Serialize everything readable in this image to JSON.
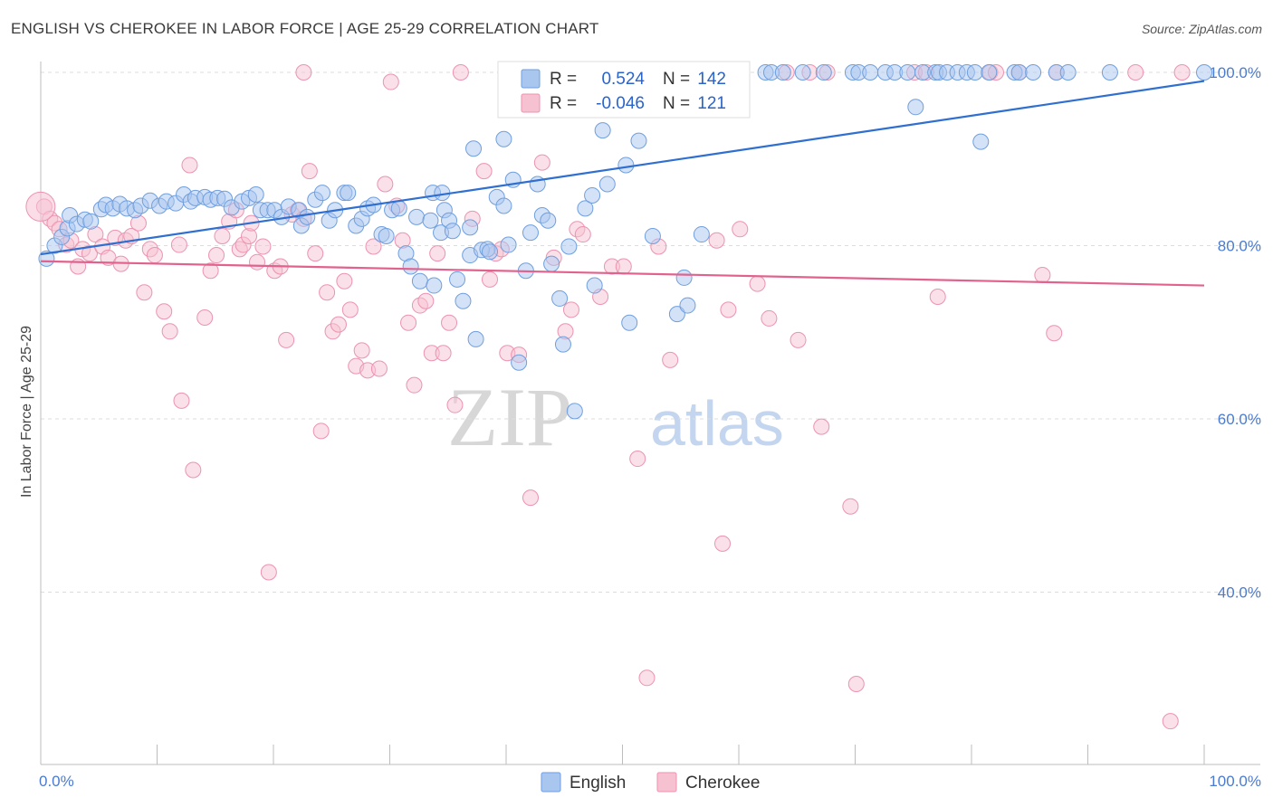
{
  "header": {
    "title": "ENGLISH VS CHEROKEE IN LABOR FORCE | AGE 25-29 CORRELATION CHART",
    "source": "Source: ZipAtlas.com"
  },
  "watermark": {
    "zip": "ZIP",
    "atlas": "atlas"
  },
  "colors": {
    "english_fill": "#a9c6ef",
    "english_stroke": "#6f9fdf",
    "english_line": "#2f6fd0",
    "cherokee_fill": "#f6c1d1",
    "cherokee_stroke": "#ec93b0",
    "cherokee_line": "#e2628e",
    "accent_text": "#2a63c9"
  },
  "legend": {
    "r_label": "R =",
    "n_label": "N =",
    "rows": [
      {
        "series": "English",
        "r": "0.524",
        "n": "142"
      },
      {
        "series": "Cherokee",
        "r": "-0.046",
        "n": "121"
      }
    ]
  },
  "chart_data": {
    "type": "scatter",
    "title": "ENGLISH VS CHEROKEE IN LABOR FORCE | AGE 25-29 CORRELATION CHART",
    "xlabel": "",
    "ylabel": "In Labor Force | Age 25-29",
    "xlim": [
      0,
      100
    ],
    "ylim": [
      20,
      102
    ],
    "x_tick_labels": [
      "0.0%",
      "100.0%"
    ],
    "y_ticks": [
      40,
      60,
      80,
      100
    ],
    "y_tick_labels": [
      "40.0%",
      "60.0%",
      "80.0%",
      "100.0%"
    ],
    "grid": true,
    "legend_position": "top-center",
    "series": [
      {
        "name": "English",
        "r": 0.524,
        "n": 142,
        "trend": {
          "x": [
            0,
            100
          ],
          "y": [
            79.0,
            99.0
          ]
        },
        "points": [
          [
            0.5,
            78.5
          ],
          [
            1.2,
            80
          ],
          [
            1.8,
            81
          ],
          [
            2.3,
            82
          ],
          [
            2.5,
            83.5
          ],
          [
            3.1,
            82.5
          ],
          [
            3.8,
            83
          ],
          [
            4.3,
            82.8
          ],
          [
            5.2,
            84.2
          ],
          [
            5.6,
            84.7
          ],
          [
            6.2,
            84.3
          ],
          [
            6.8,
            84.8
          ],
          [
            7.4,
            84.3
          ],
          [
            8.1,
            84.1
          ],
          [
            8.6,
            84.6
          ],
          [
            9.4,
            85.2
          ],
          [
            10.2,
            84.6
          ],
          [
            10.8,
            85.1
          ],
          [
            11.6,
            84.9
          ],
          [
            12.3,
            85.9
          ],
          [
            12.9,
            85.1
          ],
          [
            13.3,
            85.5
          ],
          [
            14.1,
            85.6
          ],
          [
            14.6,
            85.3
          ],
          [
            15.2,
            85.5
          ],
          [
            15.8,
            85.4
          ],
          [
            16.4,
            84.4
          ],
          [
            17.3,
            85.1
          ],
          [
            17.9,
            85.5
          ],
          [
            18.5,
            85.9
          ],
          [
            18.9,
            84.1
          ],
          [
            19.5,
            84.1
          ],
          [
            20.1,
            84.1
          ],
          [
            20.7,
            83.3
          ],
          [
            21.3,
            84.5
          ],
          [
            22.2,
            84.1
          ],
          [
            22.4,
            82.3
          ],
          [
            22.9,
            83.3
          ],
          [
            23.6,
            85.3
          ],
          [
            24.2,
            86.1
          ],
          [
            24.8,
            82.9
          ],
          [
            25.3,
            84.1
          ],
          [
            26.1,
            86.1
          ],
          [
            26.4,
            86.1
          ],
          [
            27.1,
            82.3
          ],
          [
            27.6,
            83.1
          ],
          [
            28.1,
            84.3
          ],
          [
            28.6,
            84.7
          ],
          [
            29.3,
            81.3
          ],
          [
            29.7,
            81.1
          ],
          [
            30.2,
            84.1
          ],
          [
            30.8,
            84.3
          ],
          [
            31.4,
            79.1
          ],
          [
            31.8,
            77.6
          ],
          [
            32.3,
            83.3
          ],
          [
            32.6,
            75.9
          ],
          [
            33.5,
            82.9
          ],
          [
            33.7,
            86.1
          ],
          [
            33.8,
            75.4
          ],
          [
            34.4,
            81.5
          ],
          [
            34.7,
            84.1
          ],
          [
            35.1,
            82.9
          ],
          [
            35.4,
            81.7
          ],
          [
            35.8,
            76.1
          ],
          [
            36.3,
            73.6
          ],
          [
            36.9,
            78.9
          ],
          [
            37.4,
            69.2
          ],
          [
            37.9,
            79.5
          ],
          [
            38.4,
            79.6
          ],
          [
            38.6,
            79.3
          ],
          [
            39.2,
            85.6
          ],
          [
            39.8,
            92.3
          ],
          [
            40.2,
            80.1
          ],
          [
            40.6,
            87.6
          ],
          [
            41.1,
            66.5
          ],
          [
            41.7,
            77.1
          ],
          [
            42.1,
            81.5
          ],
          [
            42.7,
            87.1
          ],
          [
            43.1,
            83.5
          ],
          [
            43.6,
            82.9
          ],
          [
            43.9,
            77.9
          ],
          [
            44.6,
            73.9
          ],
          [
            44.9,
            68.6
          ],
          [
            45.4,
            79.9
          ],
          [
            45.9,
            60.9
          ],
          [
            46.8,
            84.3
          ],
          [
            47.4,
            85.8
          ],
          [
            47.6,
            75.4
          ],
          [
            48.3,
            93.3
          ],
          [
            48.7,
            87.1
          ],
          [
            50.3,
            89.3
          ],
          [
            50.6,
            71.1
          ],
          [
            51.4,
            92.1
          ],
          [
            52.6,
            81.1
          ],
          [
            54.7,
            72.1
          ],
          [
            55.3,
            76.3
          ],
          [
            55.6,
            73.1
          ],
          [
            56.8,
            81.3
          ],
          [
            59.6,
            100
          ],
          [
            60.2,
            100
          ],
          [
            62.3,
            100
          ],
          [
            62.8,
            100
          ],
          [
            63.8,
            100
          ],
          [
            65.5,
            100
          ],
          [
            67.3,
            100
          ],
          [
            69.8,
            100
          ],
          [
            70.3,
            100
          ],
          [
            71.3,
            100
          ],
          [
            72.6,
            100
          ],
          [
            73.4,
            100
          ],
          [
            74.5,
            100
          ],
          [
            75.2,
            96
          ],
          [
            75.8,
            100
          ],
          [
            76.9,
            100
          ],
          [
            77.2,
            100
          ],
          [
            77.9,
            100
          ],
          [
            78.8,
            100
          ],
          [
            79.6,
            100
          ],
          [
            80.3,
            100
          ],
          [
            80.8,
            92
          ],
          [
            81.5,
            100
          ],
          [
            83.7,
            100
          ],
          [
            84.1,
            100
          ],
          [
            85.3,
            100
          ],
          [
            87.3,
            100
          ],
          [
            88.3,
            100
          ],
          [
            91.9,
            100
          ],
          [
            100,
            100
          ],
          [
            34.5,
            86.1
          ],
          [
            37.2,
            91.2
          ],
          [
            36.9,
            82.1
          ],
          [
            39.8,
            84.6
          ]
        ]
      },
      {
        "name": "Cherokee",
        "r": -0.046,
        "n": 121,
        "trend": {
          "x": [
            0,
            100
          ],
          "y": [
            78.2,
            75.4
          ]
        },
        "points": [
          [
            0.3,
            84.5
          ],
          [
            0.8,
            83.1
          ],
          [
            1.2,
            82.6
          ],
          [
            1.6,
            81.9
          ],
          [
            2.2,
            80.1
          ],
          [
            2.6,
            80.6
          ],
          [
            3.2,
            77.6
          ],
          [
            3.6,
            79.6
          ],
          [
            4.2,
            79.1
          ],
          [
            4.7,
            81.3
          ],
          [
            5.3,
            79.9
          ],
          [
            5.8,
            78.6
          ],
          [
            6.4,
            80.9
          ],
          [
            6.9,
            77.9
          ],
          [
            7.3,
            80.6
          ],
          [
            7.8,
            81.1
          ],
          [
            8.4,
            82.6
          ],
          [
            8.9,
            74.6
          ],
          [
            9.4,
            79.6
          ],
          [
            9.8,
            78.9
          ],
          [
            10.6,
            72.4
          ],
          [
            11.1,
            70.1
          ],
          [
            11.9,
            80.1
          ],
          [
            12.1,
            62.1
          ],
          [
            12.8,
            89.3
          ],
          [
            13.1,
            54.1
          ],
          [
            14.1,
            71.7
          ],
          [
            14.6,
            77.1
          ],
          [
            15.1,
            78.9
          ],
          [
            15.6,
            81.1
          ],
          [
            16.2,
            82.8
          ],
          [
            16.8,
            84.1
          ],
          [
            17.1,
            79.6
          ],
          [
            17.4,
            80.1
          ],
          [
            17.9,
            81.1
          ],
          [
            18.1,
            82.6
          ],
          [
            18.6,
            78.1
          ],
          [
            19.1,
            79.9
          ],
          [
            19.6,
            42.3
          ],
          [
            20.1,
            77.1
          ],
          [
            20.6,
            77.6
          ],
          [
            21.1,
            69.1
          ],
          [
            21.6,
            83.6
          ],
          [
            22.1,
            84.1
          ],
          [
            22.6,
            83.1
          ],
          [
            23.1,
            88.6
          ],
          [
            23.6,
            79.1
          ],
          [
            24.1,
            58.6
          ],
          [
            24.6,
            74.6
          ],
          [
            25.1,
            70.1
          ],
          [
            25.6,
            70.9
          ],
          [
            26.1,
            75.9
          ],
          [
            26.6,
            72.6
          ],
          [
            27.1,
            66.1
          ],
          [
            27.6,
            67.9
          ],
          [
            28.1,
            65.6
          ],
          [
            28.6,
            79.9
          ],
          [
            29.1,
            65.8
          ],
          [
            29.6,
            87.1
          ],
          [
            30.1,
            98.9
          ],
          [
            30.6,
            84.6
          ],
          [
            31.1,
            80.6
          ],
          [
            31.6,
            71.1
          ],
          [
            32.1,
            63.9
          ],
          [
            32.6,
            73.1
          ],
          [
            33.1,
            73.6
          ],
          [
            33.6,
            67.6
          ],
          [
            34.1,
            79.1
          ],
          [
            34.6,
            67.6
          ],
          [
            35.1,
            71.1
          ],
          [
            35.6,
            61.6
          ],
          [
            36.1,
            100
          ],
          [
            37.1,
            83.1
          ],
          [
            38.1,
            88.6
          ],
          [
            38.6,
            76.1
          ],
          [
            39.1,
            79.1
          ],
          [
            39.6,
            79.6
          ],
          [
            40.1,
            67.6
          ],
          [
            41.1,
            67.4
          ],
          [
            42.1,
            50.9
          ],
          [
            43.1,
            89.6
          ],
          [
            44.1,
            78.6
          ],
          [
            45.1,
            70.1
          ],
          [
            45.6,
            72.6
          ],
          [
            46.1,
            81.9
          ],
          [
            46.6,
            81.3
          ],
          [
            48.1,
            74.1
          ],
          [
            49.1,
            77.6
          ],
          [
            50.1,
            77.6
          ],
          [
            51.3,
            55.4
          ],
          [
            52.1,
            30.1
          ],
          [
            53.1,
            79.9
          ],
          [
            54.1,
            66.8
          ],
          [
            55.6,
            100
          ],
          [
            56.1,
            98.9
          ],
          [
            58.1,
            80.6
          ],
          [
            58.6,
            45.6
          ],
          [
            59.1,
            72.6
          ],
          [
            60.1,
            81.9
          ],
          [
            61.6,
            75.6
          ],
          [
            62.6,
            71.6
          ],
          [
            64.1,
            100
          ],
          [
            65.1,
            69.1
          ],
          [
            66.1,
            100
          ],
          [
            67.1,
            59.1
          ],
          [
            67.6,
            100
          ],
          [
            69.6,
            49.9
          ],
          [
            70.1,
            29.4
          ],
          [
            75.1,
            100
          ],
          [
            76.1,
            100
          ],
          [
            77.1,
            74.1
          ],
          [
            81.6,
            100
          ],
          [
            82.1,
            100
          ],
          [
            84.1,
            100
          ],
          [
            86.1,
            76.6
          ],
          [
            87.1,
            69.9
          ],
          [
            87.3,
            100
          ],
          [
            94.1,
            100
          ],
          [
            97.1,
            25.1
          ],
          [
            98.1,
            100
          ],
          [
            22.6,
            100
          ]
        ]
      }
    ]
  }
}
